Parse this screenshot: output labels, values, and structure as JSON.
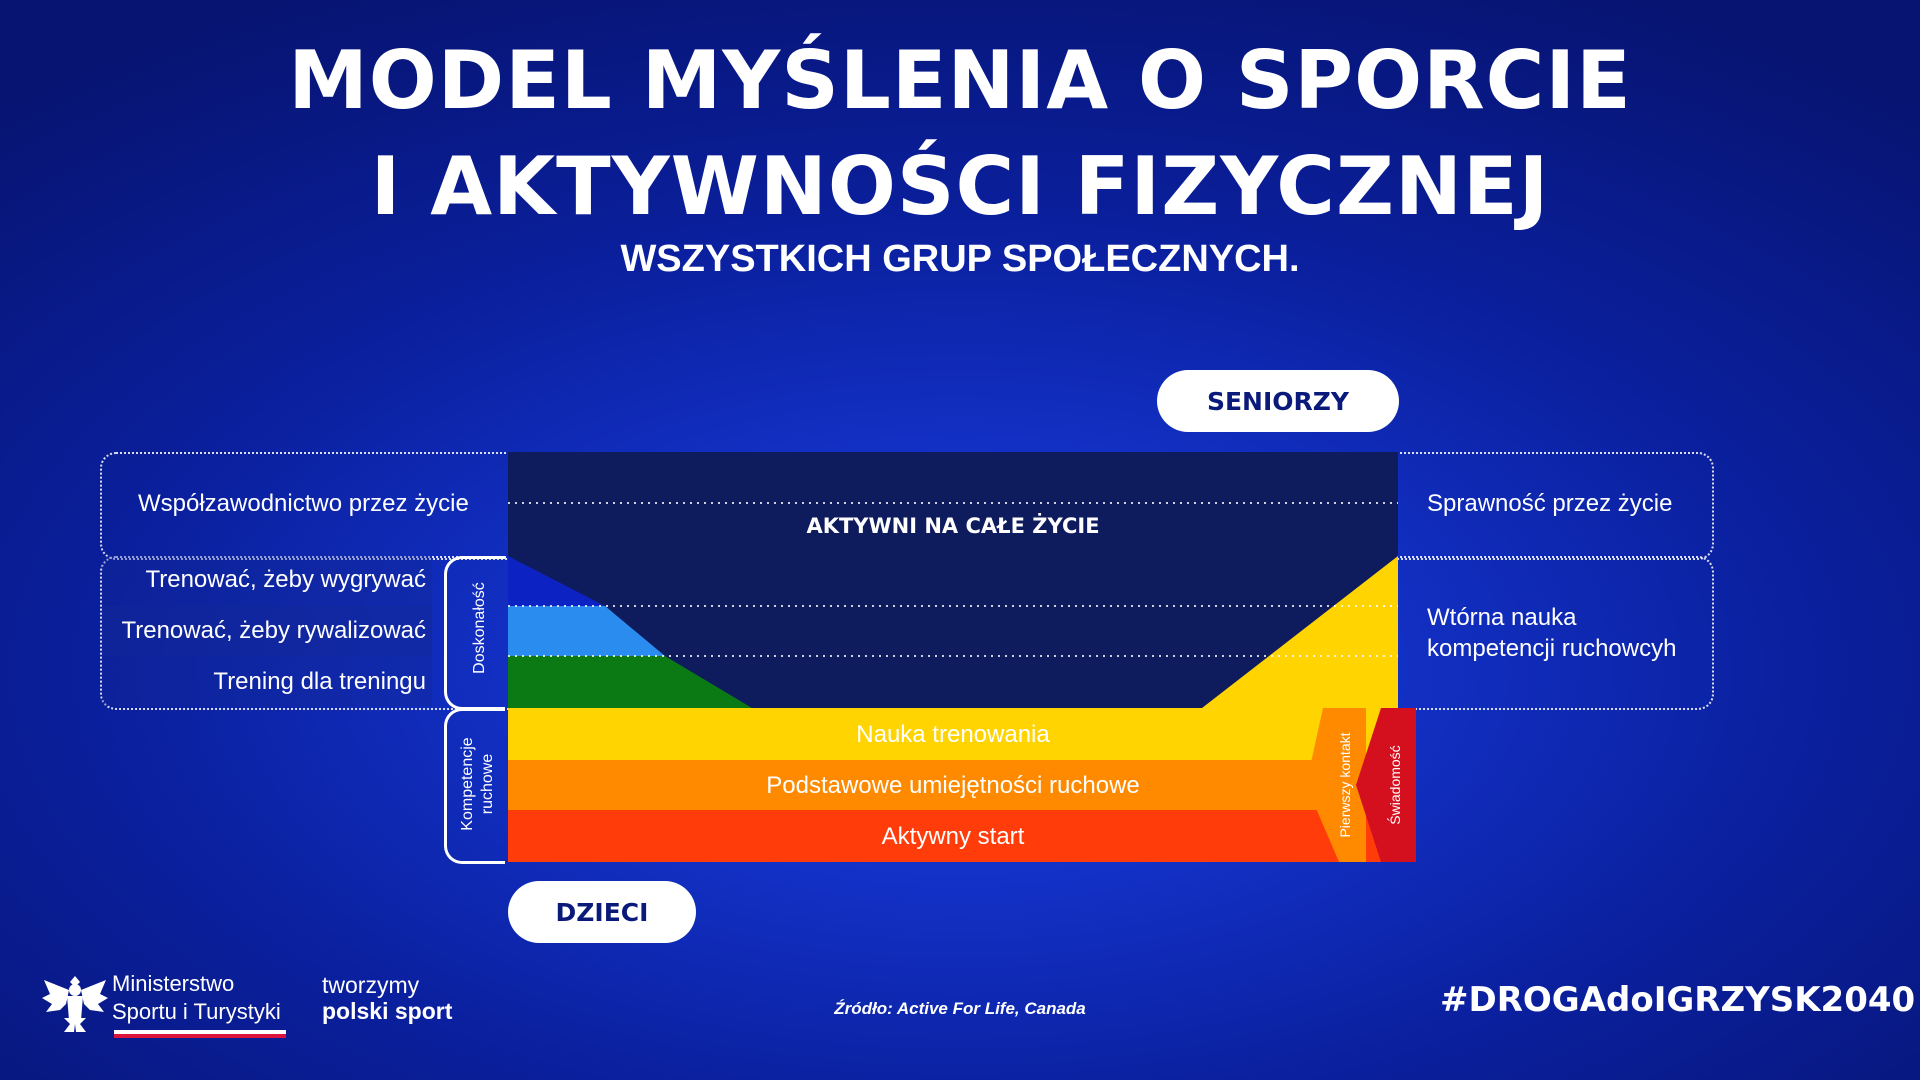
{
  "title_line1": "MODEL MYŚLENIA O SPORCIE",
  "title_line2": "I AKTYWNOŚCI FIZYCZNEJ",
  "subtitle": "WSZYSTKICH GRUP SPOŁECZNYCH.",
  "seniors_label": "SENIORZY",
  "children_label": "DZIECI",
  "top_band_label": "AKTYWNI NA CAŁE ŻYCIE",
  "left_labels": {
    "competition": "Współzawodnictwo przez życie",
    "train_to_win": "Trenować, żeby wygrywać",
    "train_to_compete": "Trenować, żeby rywalizować",
    "train_to_train": "Trening dla treningu"
  },
  "right_labels": {
    "fitness": "Sprawność przez życie",
    "relearn_line1": "Wtórna nauka",
    "relearn_line2": "kompetencji ruchowcyh"
  },
  "brackets": {
    "excellence": "Doskonałość",
    "motor_line1": "Kompetencje",
    "motor_line2": "ruchowe"
  },
  "bands": {
    "learn_to_train": "Nauka trenowania",
    "fundamentals": "Podstawowe umiejętności ruchowe",
    "active_start": "Aktywny start"
  },
  "side_bands": {
    "first_contact": "Pierwszy kontakt",
    "awareness": "Świadomość"
  },
  "colors": {
    "navy": "#0e1b5c",
    "dark_blue": "#0c22c2",
    "light_blue": "#2b8cf0",
    "green": "#0b7a14",
    "yellow": "#ffd400",
    "orange": "#ff8a00",
    "red_orange": "#ff3c0a",
    "red": "#d4101e"
  },
  "footer": {
    "ministry_line1": "Ministerstwo",
    "ministry_line2": "Sportu i Turystyki",
    "slogan_line1": "tworzymy",
    "slogan_line2": "polski sport",
    "source": "Źródło: Active For Life, Canada",
    "hashtag": "#DROGAdoIGRZYSK2040"
  }
}
